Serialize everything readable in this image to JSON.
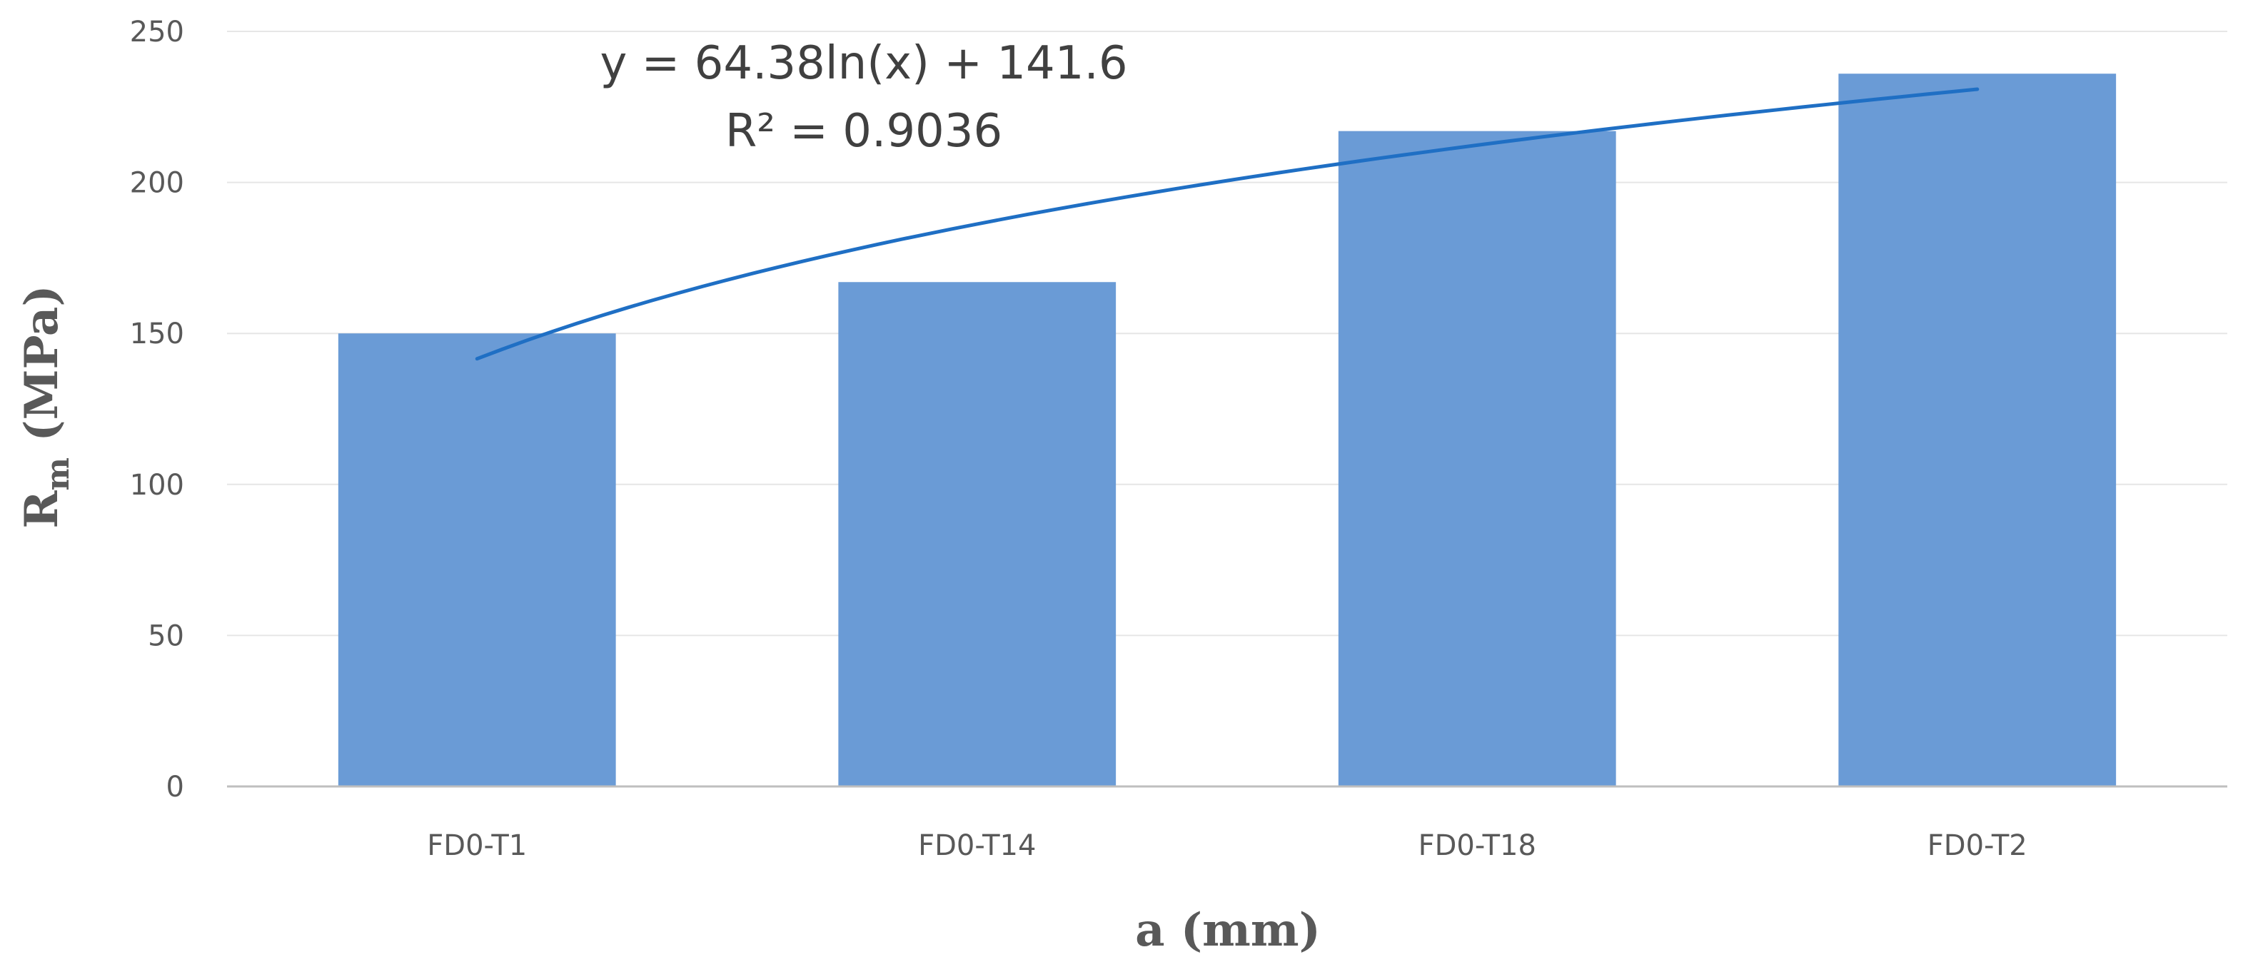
{
  "chart_data": {
    "type": "bar",
    "categories": [
      "FD0-T1",
      "FD0-T14",
      "FD0-T18",
      "FD0-T2"
    ],
    "series": [
      {
        "values": [
          150,
          167,
          217,
          236
        ],
        "color": "#6a9bd6"
      }
    ],
    "trendline": {
      "type": "logarithmic",
      "a": 64.38,
      "b": 141.6,
      "color": "#1f6fc4",
      "equation_label": "y = 64.38ln(x) + 141.6",
      "r2_label": "R² = 0.9036"
    },
    "xlabel": "a (mm)",
    "ylabel_main": "R",
    "ylabel_sub": "m",
    "ylabel_rest": " (MPa)",
    "ylim": [
      0,
      250
    ],
    "yticks": [
      0,
      50,
      100,
      150,
      200,
      250
    ],
    "grid": true,
    "gridline_color": "#e6e6e6",
    "axis_color": "#bfbfbf"
  }
}
